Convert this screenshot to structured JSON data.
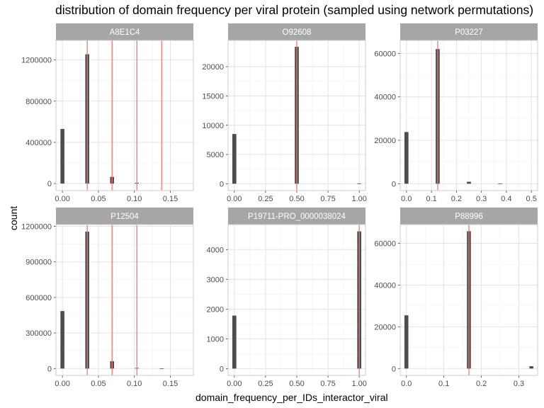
{
  "chart_data": {
    "type": "bar",
    "title": "distribution of domain frequency per viral protein (sampled using network permutations)",
    "xlabel": "domain_frequency_per_IDs_interactor_viral",
    "ylabel": "count",
    "grid": true,
    "colors": {
      "bar": "#4d4d4d",
      "vline": "#f8766d",
      "strip": "#a6a6a6"
    },
    "panels": [
      {
        "name": "A8E1C4",
        "xlim": [
          -0.009,
          0.182
        ],
        "ylim": [
          -68000,
          1390000
        ],
        "xticks": [
          0,
          0.05,
          0.1,
          0.15
        ],
        "xtick_labels": [
          "0.00",
          "0.05",
          "0.10",
          "0.15"
        ],
        "yticks": [
          0,
          400000,
          800000,
          1200000
        ],
        "ytick_labels": [
          "0",
          "400000",
          "800000",
          "1200000"
        ],
        "bar_width": 0.0055,
        "bars": [
          {
            "x": 0.0,
            "y": 530000
          },
          {
            "x": 0.0345,
            "y": 1255000
          },
          {
            "x": 0.069,
            "y": 65000
          },
          {
            "x": 0.1035,
            "y": 7000
          }
        ],
        "vlines": [
          0.0345,
          0.069,
          0.1035,
          0.138
        ]
      },
      {
        "name": "O92608",
        "xlim": [
          -0.05,
          1.05
        ],
        "ylim": [
          -1170,
          24500
        ],
        "xticks": [
          0,
          0.25,
          0.5,
          0.75,
          1.0
        ],
        "xtick_labels": [
          "0.00",
          "0.25",
          "0.50",
          "0.75",
          "1.00"
        ],
        "yticks": [
          0,
          5000,
          10000,
          15000,
          20000
        ],
        "ytick_labels": [
          "0",
          "5000",
          "10000",
          "15000",
          "20000"
        ],
        "bar_width": 0.032,
        "bars": [
          {
            "x": 0.0,
            "y": 8500
          },
          {
            "x": 0.5,
            "y": 23400
          },
          {
            "x": 1.0,
            "y": 60
          }
        ],
        "vlines": [
          0.5
        ]
      },
      {
        "name": "P03227",
        "xlim": [
          -0.025,
          0.525
        ],
        "ylim": [
          -3150,
          66000
        ],
        "xticks": [
          0,
          0.1,
          0.2,
          0.3,
          0.4,
          0.5
        ],
        "xtick_labels": [
          "0.0",
          "0.1",
          "0.2",
          "0.3",
          "0.4",
          "0.5"
        ],
        "yticks": [
          0,
          20000,
          40000,
          60000
        ],
        "ytick_labels": [
          "0",
          "20000",
          "40000",
          "60000"
        ],
        "bar_width": 0.016,
        "bars": [
          {
            "x": 0.0,
            "y": 23800
          },
          {
            "x": 0.125,
            "y": 62000
          },
          {
            "x": 0.25,
            "y": 900
          },
          {
            "x": 0.375,
            "y": 40
          }
        ],
        "vlines": [
          0.125
        ]
      },
      {
        "name": "P12504",
        "xlim": [
          -0.009,
          0.182
        ],
        "ylim": [
          -58000,
          1215000
        ],
        "xticks": [
          0,
          0.05,
          0.1,
          0.15
        ],
        "xtick_labels": [
          "0.00",
          "0.05",
          "0.10",
          "0.15"
        ],
        "yticks": [
          0,
          300000,
          600000,
          900000,
          1200000
        ],
        "ytick_labels": [
          "0",
          "300000",
          "600000",
          "900000",
          "1200000"
        ],
        "bar_width": 0.0055,
        "bars": [
          {
            "x": 0.0,
            "y": 485000
          },
          {
            "x": 0.0345,
            "y": 1155000
          },
          {
            "x": 0.069,
            "y": 62000
          },
          {
            "x": 0.1035,
            "y": 5000
          },
          {
            "x": 0.138,
            "y": 800
          }
        ],
        "vlines": [
          0.0345,
          0.069,
          0.1035
        ]
      },
      {
        "name": "P19711-PRO_0000038024",
        "xlim": [
          -0.05,
          1.05
        ],
        "ylim": [
          -230,
          4840
        ],
        "xticks": [
          0,
          0.25,
          0.5,
          0.75,
          1.0
        ],
        "xtick_labels": [
          "0.00",
          "0.25",
          "0.50",
          "0.75",
          "1.00"
        ],
        "yticks": [
          0,
          1000,
          2000,
          3000,
          4000
        ],
        "ytick_labels": [
          "0",
          "1000",
          "2000",
          "3000",
          "4000"
        ],
        "bar_width": 0.032,
        "bars": [
          {
            "x": 0.0,
            "y": 1780
          },
          {
            "x": 1.0,
            "y": 4610
          }
        ],
        "vlines": [
          1.0
        ]
      },
      {
        "name": "P88996",
        "xlim": [
          -0.0165,
          0.35
        ],
        "ylim": [
          -3300,
          69000
        ],
        "xticks": [
          0,
          0.1,
          0.2,
          0.3
        ],
        "xtick_labels": [
          "0.0",
          "0.1",
          "0.2",
          "0.3"
        ],
        "yticks": [
          0,
          20000,
          40000,
          60000
        ],
        "ytick_labels": [
          "0",
          "20000",
          "40000",
          "60000"
        ],
        "bar_width": 0.0105,
        "bars": [
          {
            "x": 0.0,
            "y": 25500
          },
          {
            "x": 0.1667,
            "y": 65800
          },
          {
            "x": 0.3333,
            "y": 1100
          }
        ],
        "vlines": [
          0.1667
        ]
      }
    ]
  }
}
